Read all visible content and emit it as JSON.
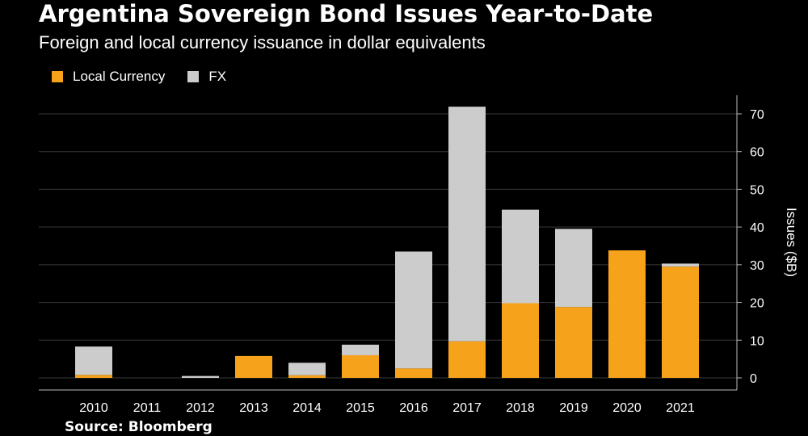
{
  "chart_data": {
    "type": "bar",
    "stacked": true,
    "title": "Argentina Sovereign Bond Issues Year-to-Date",
    "subtitle": "Foreign and local currency issuance in dollar equivalents",
    "ylabel": "Issues ($B)",
    "source": "Source: Bloomberg",
    "categories": [
      "2010",
      "2011",
      "2012",
      "2013",
      "2014",
      "2015",
      "2016",
      "2017",
      "2018",
      "2019",
      "2020",
      "2021"
    ],
    "series": [
      {
        "name": "Local Currency",
        "color": "#F7A21B",
        "values": [
          0.8,
          0,
          0,
          5.8,
          0.7,
          6.0,
          2.5,
          9.7,
          19.8,
          18.8,
          33.8,
          29.5
        ]
      },
      {
        "name": "FX",
        "color": "#CCCCCC",
        "values": [
          7.5,
          0,
          0.5,
          0,
          3.3,
          2.8,
          31.0,
          62.2,
          24.8,
          20.7,
          0,
          0.8
        ]
      }
    ],
    "ylim": [
      0,
      70
    ],
    "yticks": [
      0,
      10,
      20,
      30,
      40,
      50,
      60,
      70
    ],
    "axis_position": "right",
    "grid": true,
    "legend_position": "top-left"
  }
}
